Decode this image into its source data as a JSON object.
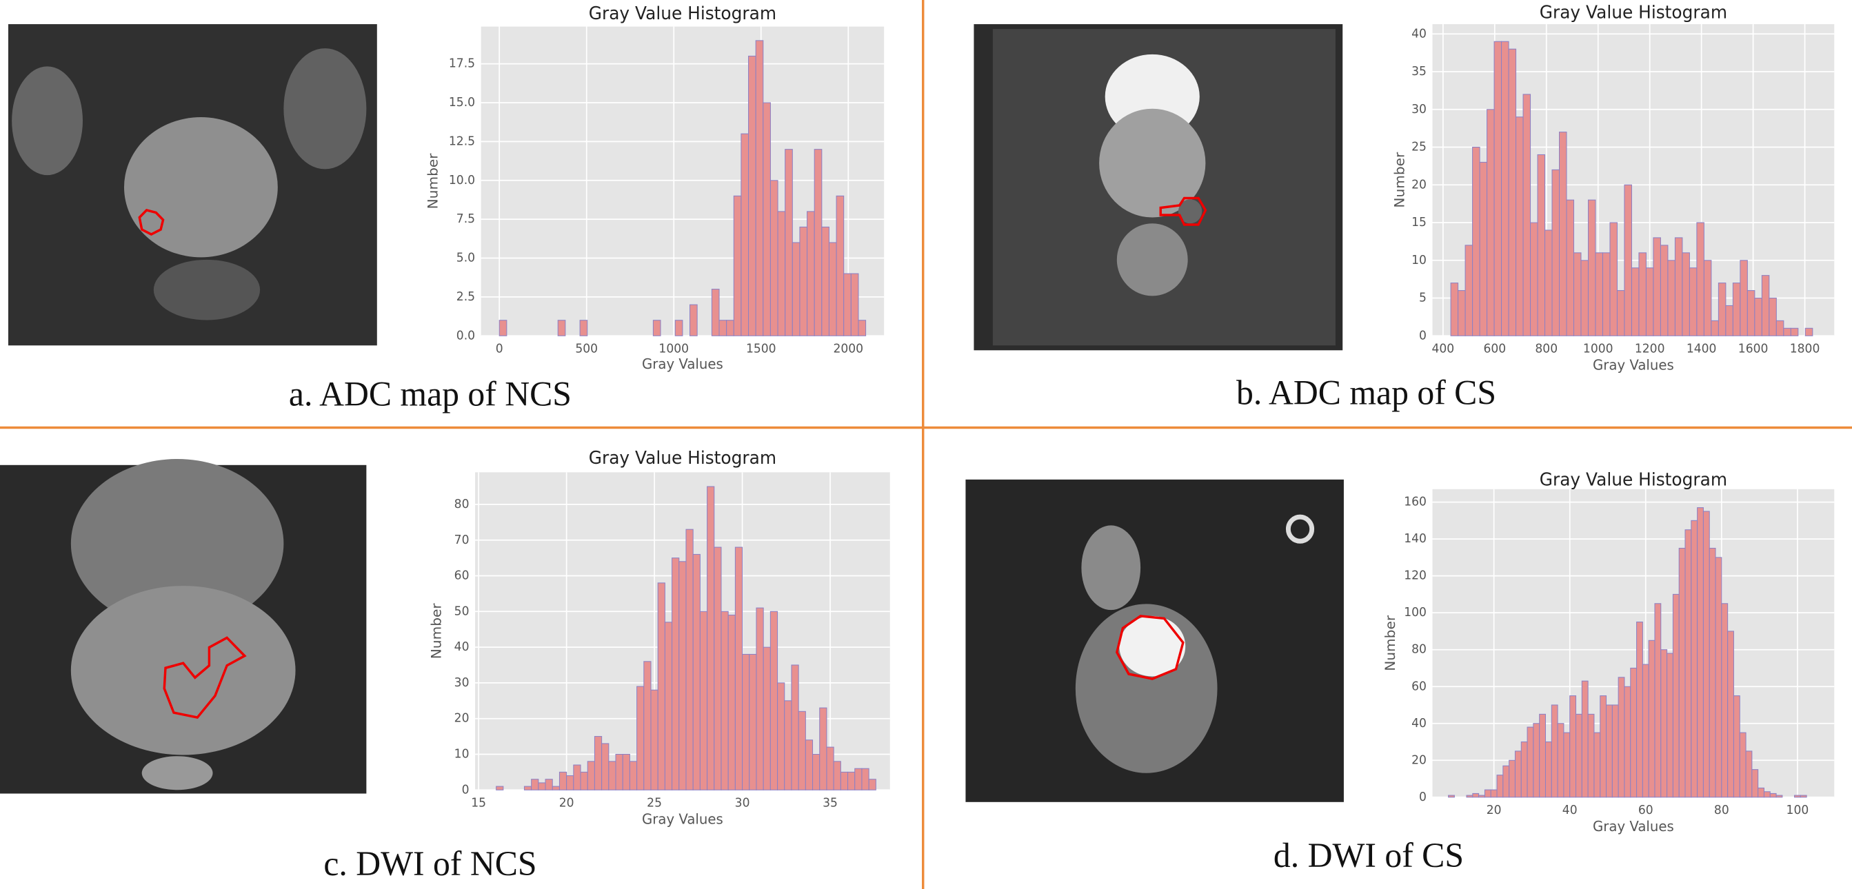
{
  "chart_data": [
    {
      "type": "histogram",
      "title": "Gray Value Histogram",
      "xlabel": "Gray Values",
      "ylabel": "Number",
      "caption": "a. ADC map of NCS",
      "bins": [
        0,
        42,
        84,
        126,
        168,
        210,
        252,
        294,
        336,
        378,
        420,
        462,
        504,
        546,
        588,
        630,
        672,
        714,
        756,
        798,
        840,
        882,
        924,
        966,
        1008,
        1050,
        1092,
        1134,
        1176,
        1218,
        1260,
        1302,
        1344,
        1386,
        1428,
        1470,
        1512,
        1554,
        1596,
        1638,
        1680,
        1722,
        1764,
        1806,
        1848,
        1890,
        1932,
        1974,
        2016,
        2058,
        2100
      ],
      "values": [
        1,
        0,
        0,
        0,
        0,
        0,
        0,
        0,
        1,
        0,
        0,
        1,
        0,
        0,
        0,
        0,
        0,
        0,
        0,
        0,
        0,
        1,
        0,
        0,
        1,
        0,
        2,
        0,
        0,
        3,
        1,
        1,
        9,
        13,
        18,
        19,
        15,
        10,
        8,
        12,
        6,
        7,
        8,
        12,
        7,
        6,
        9,
        4,
        4,
        1
      ],
      "xlim": [
        -105,
        2205
      ],
      "ylim": [
        0,
        19.9
      ],
      "xticks": [
        0,
        500,
        1000,
        1500,
        2000
      ],
      "yticks": [
        {
          "value": 0,
          "label": "0.0"
        },
        2.5,
        {
          "value": 5,
          "label": "5.0"
        },
        7.5,
        {
          "value": 10,
          "label": "10.0"
        },
        12.5,
        {
          "value": 15,
          "label": "15.0"
        },
        17.5
      ],
      "grid": true,
      "color": "#e8908f",
      "edgecolor": "#8c80c4"
    },
    {
      "type": "histogram",
      "title": "Gray Value Histogram",
      "xlabel": "Gray Values",
      "ylabel": "Number",
      "caption": "b. ADC map of CS",
      "bins": [
        430,
        458,
        486,
        514,
        542,
        570,
        598,
        626,
        654,
        682,
        710,
        738,
        766,
        794,
        822,
        850,
        878,
        906,
        934,
        962,
        990,
        1018,
        1046,
        1074,
        1102,
        1130,
        1158,
        1186,
        1214,
        1242,
        1270,
        1298,
        1326,
        1354,
        1382,
        1410,
        1438,
        1466,
        1494,
        1522,
        1550,
        1578,
        1606,
        1634,
        1662,
        1690,
        1718,
        1746,
        1774,
        1802,
        1830
      ],
      "values": [
        7,
        6,
        12,
        25,
        23,
        30,
        39,
        39,
        38,
        29,
        32,
        15,
        24,
        14,
        22,
        27,
        18,
        11,
        10,
        18,
        11,
        11,
        15,
        6,
        20,
        9,
        11,
        9,
        13,
        12,
        10,
        13,
        11,
        9,
        15,
        10,
        2,
        7,
        4,
        7,
        10,
        6,
        5,
        8,
        5,
        2,
        1,
        1,
        0,
        1
      ],
      "xlim": [
        359,
        1914
      ],
      "ylim": [
        0,
        41.3
      ],
      "xticks": [
        400,
        600,
        800,
        1000,
        1200,
        1400,
        1600,
        1800
      ],
      "yticks": [
        0,
        5,
        10,
        15,
        20,
        25,
        30,
        35,
        40
      ],
      "grid": true,
      "color": "#e8908f",
      "edgecolor": "#8c80c4"
    },
    {
      "type": "histogram",
      "title": "Gray Value Histogram",
      "xlabel": "Gray Values",
      "ylabel": "Number",
      "caption": "c. DWI of NCS",
      "bins": [
        16,
        16.4,
        16.8,
        17.2,
        17.6,
        18,
        18.4,
        18.8,
        19.2,
        19.6,
        20,
        20.4,
        20.8,
        21.2,
        21.6,
        22,
        22.4,
        22.8,
        23.2,
        23.6,
        24,
        24.4,
        24.8,
        25.2,
        25.6,
        26,
        26.4,
        26.8,
        27.2,
        27.6,
        28,
        28.4,
        28.8,
        29.2,
        29.6,
        30,
        30.4,
        30.8,
        31.2,
        31.6,
        32,
        32.4,
        32.8,
        33.2,
        33.6,
        34,
        34.4,
        34.8,
        35.2,
        35.6,
        36,
        36.4,
        36.8,
        37.2,
        37.6
      ],
      "values": [
        1,
        0,
        0,
        0,
        1,
        3,
        2,
        3,
        1,
        5,
        4,
        7,
        5,
        8,
        15,
        13,
        8,
        10,
        10,
        8,
        29,
        36,
        28,
        58,
        47,
        65,
        64,
        73,
        66,
        50,
        85,
        68,
        50,
        49,
        68,
        38,
        38,
        51,
        40,
        50,
        30,
        25,
        35,
        22,
        14,
        10,
        23,
        12,
        8,
        5,
        5,
        6,
        6,
        3
      ],
      "xlim": [
        14.8,
        38.4
      ],
      "ylim": [
        0,
        89
      ],
      "xticks": [
        15,
        20,
        25,
        30,
        35
      ],
      "yticks": [
        0,
        10,
        20,
        30,
        40,
        50,
        60,
        70,
        80
      ],
      "grid": true,
      "color": "#e8908f",
      "edgecolor": "#8c80c4"
    },
    {
      "type": "histogram",
      "title": "Gray Value Histogram",
      "xlabel": "Gray Values",
      "ylabel": "Number",
      "caption": "d. DWI of CS",
      "bins": [
        8,
        9.6,
        11.2,
        12.8,
        14.4,
        16,
        17.6,
        19.2,
        20.8,
        22.4,
        24,
        25.6,
        27.2,
        28.8,
        30.4,
        32,
        33.6,
        35.2,
        36.8,
        38.4,
        40,
        41.6,
        43.2,
        44.8,
        46.4,
        48,
        49.6,
        51.2,
        52.8,
        54.4,
        56,
        57.6,
        59.2,
        60.8,
        62.4,
        64,
        65.6,
        67.2,
        68.8,
        70.4,
        72,
        73.6,
        75.2,
        76.8,
        78.4,
        80,
        81.6,
        83.2,
        84.8,
        86.4,
        88,
        89.6,
        91.2,
        92.8,
        94.4,
        96,
        97.6,
        99.2,
        100.8,
        102.4,
        104
      ],
      "values": [
        1,
        0,
        0,
        1,
        2,
        1,
        4,
        4,
        12,
        17,
        20,
        25,
        30,
        38,
        40,
        45,
        30,
        50,
        40,
        35,
        55,
        45,
        63,
        45,
        35,
        55,
        50,
        50,
        65,
        60,
        70,
        95,
        72,
        85,
        105,
        80,
        78,
        110,
        135,
        145,
        150,
        157,
        155,
        135,
        130,
        105,
        90,
        55,
        35,
        25,
        15,
        5,
        3,
        2,
        1,
        0,
        0,
        1,
        1,
        0
      ],
      "xlim": [
        3.8,
        109.7
      ],
      "ylim": [
        0,
        167
      ],
      "xticks": [
        20,
        40,
        60,
        80,
        100
      ],
      "yticks": [
        0,
        20,
        40,
        60,
        80,
        100,
        120,
        140,
        160
      ],
      "grid": true,
      "color": "#e8908f",
      "edgecolor": "#8c80c4"
    }
  ]
}
